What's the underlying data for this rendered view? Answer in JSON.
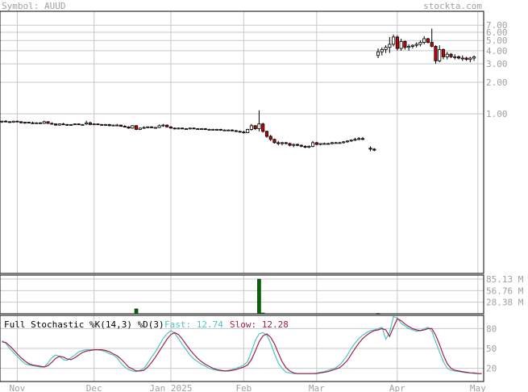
{
  "header": {
    "symbol_label": "Symbol: AUUD",
    "source": "stockta.com"
  },
  "colors": {
    "background": "#ffffff",
    "border": "#000000",
    "grid": "#c8c8c8",
    "axis_text": "#a0a0a0",
    "candle_up": "#ffffff",
    "candle_down": "#cc0000",
    "wick": "#000000",
    "volume_bar": "#006600",
    "fast_line": "#4fc4c4",
    "slow_line": "#a0204a",
    "stoch_label": "#000000"
  },
  "chart_data": [
    {
      "type": "candlestick",
      "panel": "price",
      "y_scale": "log",
      "ylim": [
        0.03,
        9.5
      ],
      "y_ticks": [
        {
          "value": 7.0,
          "label": "7.00"
        },
        {
          "value": 6.0,
          "label": "6.00"
        },
        {
          "value": 5.0,
          "label": "5.00"
        },
        {
          "value": 4.0,
          "label": "4.00"
        },
        {
          "value": 3.0,
          "label": "3.00"
        },
        {
          "value": 2.0,
          "label": "2.00"
        },
        {
          "value": 1.0,
          "label": "1.00"
        }
      ],
      "x_ticks": [
        {
          "index": 4,
          "label": "Nov"
        },
        {
          "index": 24,
          "label": "Dec"
        },
        {
          "index": 44,
          "label": "Jan 2025"
        },
        {
          "index": 63,
          "label": "Feb"
        },
        {
          "index": 82,
          "label": "Mar"
        },
        {
          "index": 103,
          "label": "Apr"
        },
        {
          "index": 124,
          "label": "May"
        }
      ],
      "x_count": 126,
      "candles": [
        [
          0,
          0.84,
          0.86,
          0.82,
          0.85
        ],
        [
          1,
          0.85,
          0.87,
          0.83,
          0.84
        ],
        [
          2,
          0.84,
          0.85,
          0.82,
          0.83
        ],
        [
          3,
          0.83,
          0.86,
          0.82,
          0.85
        ],
        [
          4,
          0.85,
          0.86,
          0.83,
          0.84
        ],
        [
          5,
          0.84,
          0.85,
          0.81,
          0.82
        ],
        [
          6,
          0.82,
          0.84,
          0.8,
          0.83
        ],
        [
          7,
          0.83,
          0.84,
          0.81,
          0.82
        ],
        [
          8,
          0.82,
          0.84,
          0.8,
          0.81
        ],
        [
          9,
          0.81,
          0.83,
          0.8,
          0.82
        ],
        [
          10,
          0.82,
          0.83,
          0.8,
          0.81
        ],
        [
          11,
          0.81,
          0.86,
          0.8,
          0.84
        ],
        [
          12,
          0.84,
          0.85,
          0.8,
          0.81
        ],
        [
          13,
          0.81,
          0.83,
          0.79,
          0.8
        ],
        [
          14,
          0.8,
          0.81,
          0.77,
          0.78
        ],
        [
          15,
          0.78,
          0.81,
          0.77,
          0.8
        ],
        [
          16,
          0.8,
          0.82,
          0.78,
          0.79
        ],
        [
          17,
          0.79,
          0.8,
          0.77,
          0.78
        ],
        [
          18,
          0.78,
          0.8,
          0.77,
          0.79
        ],
        [
          19,
          0.79,
          0.81,
          0.78,
          0.8
        ],
        [
          20,
          0.8,
          0.81,
          0.78,
          0.79
        ],
        [
          21,
          0.79,
          0.8,
          0.78,
          0.79
        ],
        [
          22,
          0.8,
          0.86,
          0.78,
          0.82
        ],
        [
          23,
          0.82,
          0.84,
          0.78,
          0.79
        ],
        [
          24,
          0.79,
          0.81,
          0.78,
          0.8
        ],
        [
          25,
          0.8,
          0.81,
          0.78,
          0.79
        ],
        [
          26,
          0.79,
          0.8,
          0.77,
          0.78
        ],
        [
          27,
          0.78,
          0.8,
          0.77,
          0.79
        ],
        [
          28,
          0.79,
          0.8,
          0.76,
          0.77
        ],
        [
          29,
          0.77,
          0.79,
          0.76,
          0.78
        ],
        [
          30,
          0.78,
          0.8,
          0.77,
          0.78
        ],
        [
          31,
          0.78,
          0.79,
          0.75,
          0.76
        ],
        [
          32,
          0.76,
          0.78,
          0.74,
          0.75
        ],
        [
          33,
          0.75,
          0.76,
          0.72,
          0.73
        ],
        [
          34,
          0.73,
          0.78,
          0.72,
          0.77
        ],
        [
          35,
          0.77,
          0.78,
          0.7,
          0.71
        ],
        [
          36,
          0.71,
          0.74,
          0.7,
          0.73
        ],
        [
          37,
          0.73,
          0.76,
          0.72,
          0.74
        ],
        [
          38,
          0.74,
          0.76,
          0.73,
          0.75
        ],
        [
          39,
          0.75,
          0.76,
          0.73,
          0.74
        ],
        [
          40,
          0.74,
          0.75,
          0.73,
          0.74
        ],
        [
          41,
          0.74,
          0.79,
          0.73,
          0.77
        ],
        [
          42,
          0.77,
          0.8,
          0.75,
          0.78
        ],
        [
          43,
          0.78,
          0.79,
          0.74,
          0.75
        ],
        [
          44,
          0.75,
          0.76,
          0.72,
          0.73
        ],
        [
          45,
          0.73,
          0.74,
          0.71,
          0.72
        ],
        [
          46,
          0.72,
          0.74,
          0.71,
          0.73
        ],
        [
          47,
          0.73,
          0.74,
          0.72,
          0.72
        ],
        [
          48,
          0.72,
          0.73,
          0.71,
          0.72
        ],
        [
          49,
          0.72,
          0.74,
          0.71,
          0.73
        ],
        [
          50,
          0.73,
          0.74,
          0.72,
          0.72
        ],
        [
          51,
          0.72,
          0.73,
          0.71,
          0.72
        ],
        [
          52,
          0.72,
          0.73,
          0.71,
          0.72
        ],
        [
          53,
          0.72,
          0.73,
          0.7,
          0.71
        ],
        [
          54,
          0.71,
          0.72,
          0.7,
          0.71
        ],
        [
          55,
          0.71,
          0.72,
          0.7,
          0.71
        ],
        [
          56,
          0.71,
          0.72,
          0.7,
          0.71
        ],
        [
          57,
          0.71,
          0.72,
          0.69,
          0.7
        ],
        [
          58,
          0.7,
          0.71,
          0.69,
          0.7
        ],
        [
          59,
          0.7,
          0.71,
          0.69,
          0.7
        ],
        [
          60,
          0.7,
          0.71,
          0.68,
          0.69
        ],
        [
          61,
          0.69,
          0.7,
          0.67,
          0.68
        ],
        [
          62,
          0.68,
          0.69,
          0.66,
          0.67
        ],
        [
          63,
          0.67,
          0.69,
          0.65,
          0.66
        ],
        [
          64,
          0.66,
          0.72,
          0.66,
          0.71
        ],
        [
          65,
          0.71,
          0.8,
          0.69,
          0.77
        ],
        [
          66,
          0.77,
          0.78,
          0.7,
          0.72
        ],
        [
          67,
          0.72,
          1.08,
          0.68,
          0.8
        ],
        [
          68,
          0.8,
          0.82,
          0.66,
          0.68
        ],
        [
          69,
          0.68,
          0.69,
          0.59,
          0.61
        ],
        [
          70,
          0.61,
          0.63,
          0.55,
          0.57
        ],
        [
          71,
          0.57,
          0.58,
          0.52,
          0.53
        ],
        [
          72,
          0.53,
          0.55,
          0.5,
          0.52
        ],
        [
          73,
          0.52,
          0.54,
          0.5,
          0.53
        ],
        [
          74,
          0.53,
          0.54,
          0.51,
          0.52
        ],
        [
          75,
          0.52,
          0.53,
          0.49,
          0.5
        ],
        [
          76,
          0.5,
          0.52,
          0.48,
          0.51
        ],
        [
          77,
          0.51,
          0.52,
          0.49,
          0.5
        ],
        [
          78,
          0.5,
          0.51,
          0.48,
          0.49
        ],
        [
          79,
          0.49,
          0.5,
          0.47,
          0.48
        ],
        [
          80,
          0.48,
          0.5,
          0.47,
          0.49
        ],
        [
          81,
          0.49,
          0.55,
          0.48,
          0.53
        ],
        [
          82,
          0.53,
          0.54,
          0.5,
          0.51
        ],
        [
          83,
          0.51,
          0.52,
          0.5,
          0.52
        ],
        [
          84,
          0.52,
          0.53,
          0.51,
          0.52
        ],
        [
          85,
          0.52,
          0.53,
          0.51,
          0.52
        ],
        [
          86,
          0.52,
          0.54,
          0.51,
          0.53
        ],
        [
          87,
          0.53,
          0.54,
          0.52,
          0.53
        ],
        [
          88,
          0.53,
          0.54,
          0.52,
          0.53
        ],
        [
          89,
          0.53,
          0.55,
          0.52,
          0.54
        ],
        [
          90,
          0.54,
          0.56,
          0.53,
          0.55
        ],
        [
          91,
          0.55,
          0.57,
          0.54,
          0.56
        ],
        [
          92,
          0.56,
          0.59,
          0.55,
          0.57
        ],
        [
          93,
          0.57,
          0.6,
          0.56,
          0.58
        ],
        [
          94,
          0.58,
          0.6,
          0.56,
          0.57
        ],
        [
          96,
          0.47,
          0.49,
          0.44,
          0.46
        ],
        [
          97,
          0.46,
          0.47,
          0.44,
          0.45
        ],
        [
          98,
          3.6,
          4.2,
          3.4,
          3.9
        ],
        [
          99,
          3.9,
          4.3,
          3.6,
          4.1
        ],
        [
          100,
          4.1,
          4.5,
          3.8,
          4.3
        ],
        [
          101,
          4.3,
          5.4,
          3.8,
          4.6
        ],
        [
          102,
          4.6,
          5.7,
          4.4,
          5.4
        ],
        [
          103,
          5.4,
          5.6,
          4.0,
          4.2
        ],
        [
          104,
          4.2,
          5.2,
          4.0,
          4.9
        ],
        [
          105,
          4.9,
          5.0,
          4.1,
          4.3
        ],
        [
          106,
          4.3,
          4.6,
          4.0,
          4.4
        ],
        [
          107,
          4.4,
          4.6,
          4.2,
          4.5
        ],
        [
          108,
          4.5,
          4.8,
          4.3,
          4.6
        ],
        [
          109,
          4.6,
          5.0,
          4.4,
          4.8
        ],
        [
          110,
          4.8,
          5.5,
          4.6,
          5.2
        ],
        [
          111,
          5.2,
          5.3,
          4.7,
          4.8
        ],
        [
          112,
          4.8,
          6.5,
          4.3,
          4.4
        ],
        [
          113,
          4.4,
          4.5,
          3.0,
          3.2
        ],
        [
          114,
          3.2,
          4.5,
          3.1,
          4.1
        ],
        [
          115,
          4.1,
          4.2,
          3.3,
          3.5
        ],
        [
          116,
          3.5,
          3.9,
          3.3,
          3.7
        ],
        [
          117,
          3.7,
          3.8,
          3.4,
          3.5
        ],
        [
          118,
          3.5,
          3.7,
          3.3,
          3.5
        ],
        [
          119,
          3.5,
          3.6,
          3.3,
          3.4
        ],
        [
          120,
          3.4,
          3.6,
          3.2,
          3.4
        ],
        [
          121,
          3.4,
          3.5,
          3.2,
          3.3
        ],
        [
          122,
          3.3,
          3.5,
          3.1,
          3.4
        ],
        [
          123,
          3.4,
          3.6,
          3.2,
          3.5
        ]
      ]
    },
    {
      "type": "bar",
      "panel": "volume",
      "ylim": [
        0,
        95
      ],
      "y_ticks": [
        {
          "value": 85.13,
          "label": "85.13 M"
        },
        {
          "value": 56.76,
          "label": "56.76 M"
        },
        {
          "value": 28.38,
          "label": "28.38 M"
        }
      ],
      "bars": [
        {
          "index": 35,
          "value": 12
        },
        {
          "index": 67,
          "value": 85
        },
        {
          "index": 68,
          "value": 2
        },
        {
          "index": 98,
          "value": 1
        }
      ]
    },
    {
      "type": "line",
      "panel": "stochastic",
      "title": "Full Stochastic %K(14,3) %D(3)",
      "fast_label": "Fast: 12.74",
      "slow_label": "Slow: 12.28",
      "ylim": [
        0,
        100
      ],
      "y_ticks": [
        {
          "value": 80,
          "label": "80"
        },
        {
          "value": 50,
          "label": "50"
        },
        {
          "value": 20,
          "label": "20"
        }
      ],
      "series": [
        {
          "key": "fast",
          "values": [
            62,
            58,
            50,
            44,
            38,
            32,
            27,
            25,
            24,
            23,
            22,
            22,
            28,
            36,
            40,
            38,
            33,
            32,
            36,
            40,
            45,
            47,
            48,
            48,
            48,
            48,
            47,
            45,
            42,
            40,
            36,
            28,
            22,
            18,
            16,
            15,
            17,
            20,
            28,
            37,
            45,
            55,
            65,
            72,
            77,
            73,
            65,
            56,
            48,
            40,
            34,
            30,
            26,
            23,
            20,
            18,
            17,
            16,
            16,
            17,
            18,
            20,
            22,
            25,
            30,
            45,
            62,
            72,
            74,
            70,
            58,
            42,
            28,
            20,
            14,
            13,
            12,
            12,
            12,
            12,
            12,
            12,
            13,
            14,
            15,
            17,
            19,
            21,
            25,
            32,
            40,
            50,
            58,
            65,
            70,
            74,
            77,
            78,
            80,
            82,
            64,
            74,
            98,
            96,
            88,
            84,
            80,
            78,
            76,
            77,
            80,
            82,
            76,
            60,
            45,
            30,
            20,
            17,
            16,
            15,
            14,
            13,
            13,
            12,
            12,
            12
          ]
        },
        {
          "key": "slow",
          "values": [
            60,
            59,
            54,
            48,
            42,
            36,
            31,
            27,
            25,
            24,
            23,
            22,
            24,
            29,
            35,
            38,
            37,
            34,
            33,
            36,
            40,
            44,
            46,
            47,
            48,
            48,
            48,
            47,
            45,
            42,
            39,
            34,
            28,
            22,
            19,
            16,
            16,
            17,
            22,
            29,
            37,
            46,
            55,
            64,
            71,
            74,
            71,
            64,
            56,
            48,
            41,
            35,
            30,
            26,
            23,
            20,
            18,
            17,
            16,
            16,
            17,
            18,
            20,
            22,
            25,
            33,
            46,
            60,
            69,
            72,
            67,
            57,
            43,
            30,
            21,
            16,
            13,
            12,
            12,
            12,
            12,
            12,
            12,
            13,
            14,
            15,
            17,
            19,
            21,
            26,
            32,
            41,
            50,
            58,
            65,
            70,
            74,
            77,
            78,
            80,
            78,
            68,
            82,
            95,
            92,
            87,
            83,
            80,
            78,
            77,
            78,
            80,
            80,
            70,
            56,
            40,
            27,
            20,
            17,
            16,
            15,
            14,
            13,
            13,
            12,
            12
          ]
        }
      ]
    }
  ]
}
